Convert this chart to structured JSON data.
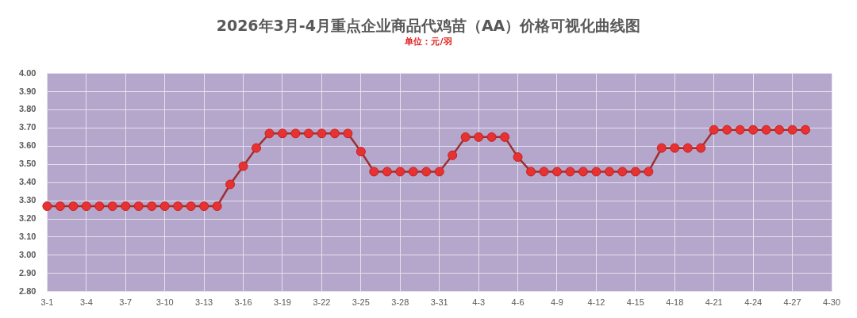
{
  "chart_data": {
    "type": "line",
    "title": "2026年3月-4月重点企业商品代鸡苗（AA）价格可视化曲线图",
    "subtitle": "单位：元/羽",
    "categories": [
      "3-1",
      null,
      null,
      "3-4",
      null,
      null,
      "3-7",
      null,
      null,
      "3-10",
      null,
      null,
      "3-13",
      null,
      null,
      "3-16",
      null,
      null,
      "3-19",
      null,
      null,
      "3-22",
      null,
      null,
      "3-25",
      null,
      null,
      "3-28",
      null,
      null,
      "3-31",
      null,
      null,
      "4-3",
      null,
      null,
      "4-6",
      null,
      null,
      "4-9",
      null,
      null,
      "4-12",
      null,
      null,
      "4-15",
      null,
      null,
      "4-18",
      null,
      null,
      "4-21",
      null,
      null,
      "4-24",
      null,
      null,
      "4-27",
      null,
      null,
      "4-30"
    ],
    "series": [
      {
        "color": "#9e3030",
        "values": [
          3.27,
          3.27,
          3.27,
          3.27,
          3.27,
          3.27,
          3.27,
          3.27,
          3.27,
          3.27,
          3.27,
          3.27,
          3.27,
          3.27,
          3.39,
          3.49,
          3.59,
          3.67,
          3.67,
          3.67,
          3.67,
          3.67,
          3.67,
          3.67,
          3.57,
          3.46,
          3.46,
          3.46,
          3.46,
          3.46,
          3.46,
          3.55,
          3.65,
          3.65,
          3.65,
          3.65,
          3.54,
          3.46,
          3.46,
          3.46,
          3.46,
          3.46,
          3.46,
          3.46,
          3.46,
          3.46,
          3.46,
          3.59,
          3.59,
          3.59,
          3.59,
          3.69,
          3.69,
          3.69,
          3.69,
          3.69,
          3.69,
          3.69,
          3.69,
          null,
          null
        ]
      }
    ],
    "ylim": [
      2.8,
      4.0
    ],
    "yticks": [
      {
        "value": 2.8,
        "label": "2.80"
      },
      {
        "value": 2.9,
        "label": "2.90"
      },
      {
        "value": 3.0,
        "label": "3.00"
      },
      {
        "value": 3.1,
        "label": "3.10"
      },
      {
        "value": 3.2,
        "label": "3.20"
      },
      {
        "value": 3.3,
        "label": "3.30"
      },
      {
        "value": 3.4,
        "label": "3.40"
      },
      {
        "value": 3.5,
        "label": "3.50"
      },
      {
        "value": 3.6,
        "label": "3.60"
      },
      {
        "value": 3.7,
        "label": "3.70"
      },
      {
        "value": 3.8,
        "label": "3.80"
      },
      {
        "value": 3.9,
        "label": "3.90"
      },
      {
        "value": 4.0,
        "label": "4.00"
      }
    ],
    "grid": true,
    "marker": "circle",
    "line_style": "solid"
  }
}
